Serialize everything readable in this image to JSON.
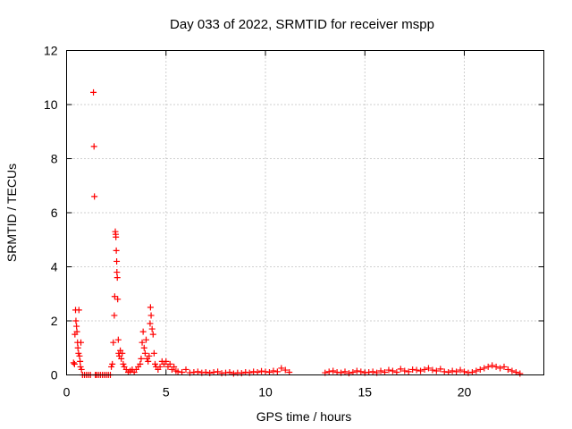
{
  "chart_data": {
    "type": "scatter",
    "title": "Day 033 of 2022, SRMTID for receiver mspp",
    "xlabel": "GPS time / hours",
    "ylabel": "SRMTID / TECUs",
    "xlim": [
      0,
      24
    ],
    "ylim": [
      0,
      12
    ],
    "xticks": [
      0,
      5,
      10,
      15,
      20
    ],
    "yticks": [
      0,
      2,
      4,
      6,
      8,
      10,
      12
    ],
    "xtick_labels": [
      "0",
      "5",
      "10",
      "15",
      "20"
    ],
    "ytick_labels": [
      "0",
      "2",
      "4",
      "6",
      "8",
      "10",
      "12"
    ],
    "grid": true,
    "marker": "+",
    "series": [
      {
        "color": "#ff0000",
        "points": [
          [
            0.35,
            0.45
          ],
          [
            0.4,
            0.4
          ],
          [
            0.42,
            1.5
          ],
          [
            0.45,
            2.4
          ],
          [
            0.47,
            2.0
          ],
          [
            0.5,
            1.8
          ],
          [
            0.52,
            1.6
          ],
          [
            0.55,
            1.2
          ],
          [
            0.57,
            1.0
          ],
          [
            0.6,
            0.8
          ],
          [
            0.62,
            2.4
          ],
          [
            0.65,
            0.7
          ],
          [
            0.68,
            0.5
          ],
          [
            0.7,
            0.3
          ],
          [
            0.72,
            1.2
          ],
          [
            0.75,
            0.2
          ],
          [
            0.8,
            0.0
          ],
          [
            0.9,
            0.0
          ],
          [
            1.0,
            0.0
          ],
          [
            1.1,
            0.0
          ],
          [
            1.2,
            0.0
          ],
          [
            1.35,
            10.45
          ],
          [
            1.38,
            8.45
          ],
          [
            1.4,
            6.6
          ],
          [
            1.45,
            0.0
          ],
          [
            1.5,
            0.0
          ],
          [
            1.6,
            0.0
          ],
          [
            1.7,
            0.0
          ],
          [
            1.8,
            0.0
          ],
          [
            1.9,
            0.0
          ],
          [
            2.0,
            0.0
          ],
          [
            2.1,
            0.0
          ],
          [
            2.2,
            0.0
          ],
          [
            2.25,
            0.3
          ],
          [
            2.3,
            0.4
          ],
          [
            2.35,
            1.2
          ],
          [
            2.4,
            2.2
          ],
          [
            2.42,
            2.9
          ],
          [
            2.45,
            5.3
          ],
          [
            2.47,
            5.2
          ],
          [
            2.48,
            5.1
          ],
          [
            2.5,
            4.6
          ],
          [
            2.52,
            4.2
          ],
          [
            2.53,
            3.8
          ],
          [
            2.55,
            3.6
          ],
          [
            2.57,
            2.8
          ],
          [
            2.6,
            1.3
          ],
          [
            2.62,
            0.8
          ],
          [
            2.65,
            0.7
          ],
          [
            2.7,
            0.9
          ],
          [
            2.75,
            0.6
          ],
          [
            2.8,
            0.8
          ],
          [
            2.85,
            0.4
          ],
          [
            2.9,
            0.3
          ],
          [
            3.0,
            0.2
          ],
          [
            3.1,
            0.1
          ],
          [
            3.2,
            0.15
          ],
          [
            3.3,
            0.2
          ],
          [
            3.4,
            0.1
          ],
          [
            3.5,
            0.2
          ],
          [
            3.6,
            0.3
          ],
          [
            3.7,
            0.4
          ],
          [
            3.75,
            0.6
          ],
          [
            3.8,
            1.2
          ],
          [
            3.85,
            1.6
          ],
          [
            3.9,
            1.0
          ],
          [
            3.95,
            0.8
          ],
          [
            4.0,
            1.3
          ],
          [
            4.05,
            0.6
          ],
          [
            4.1,
            0.5
          ],
          [
            4.15,
            0.7
          ],
          [
            4.2,
            1.9
          ],
          [
            4.22,
            2.5
          ],
          [
            4.25,
            2.2
          ],
          [
            4.3,
            1.7
          ],
          [
            4.35,
            1.5
          ],
          [
            4.4,
            0.8
          ],
          [
            4.45,
            0.4
          ],
          [
            4.5,
            0.3
          ],
          [
            4.6,
            0.2
          ],
          [
            4.7,
            0.3
          ],
          [
            4.8,
            0.5
          ],
          [
            4.9,
            0.4
          ],
          [
            5.0,
            0.5
          ],
          [
            5.1,
            0.3
          ],
          [
            5.2,
            0.4
          ],
          [
            5.3,
            0.2
          ],
          [
            5.4,
            0.3
          ],
          [
            5.5,
            0.15
          ],
          [
            5.6,
            0.12
          ],
          [
            5.8,
            0.1
          ],
          [
            6.0,
            0.2
          ],
          [
            6.2,
            0.08
          ],
          [
            6.4,
            0.1
          ],
          [
            6.6,
            0.12
          ],
          [
            6.8,
            0.08
          ],
          [
            7.0,
            0.1
          ],
          [
            7.2,
            0.07
          ],
          [
            7.4,
            0.1
          ],
          [
            7.6,
            0.12
          ],
          [
            7.8,
            0.06
          ],
          [
            8.0,
            0.08
          ],
          [
            8.2,
            0.1
          ],
          [
            8.4,
            0.05
          ],
          [
            8.6,
            0.08
          ],
          [
            8.8,
            0.06
          ],
          [
            9.0,
            0.1
          ],
          [
            9.2,
            0.08
          ],
          [
            9.4,
            0.12
          ],
          [
            9.6,
            0.1
          ],
          [
            9.8,
            0.14
          ],
          [
            10.0,
            0.12
          ],
          [
            10.2,
            0.1
          ],
          [
            10.4,
            0.15
          ],
          [
            10.6,
            0.12
          ],
          [
            10.8,
            0.25
          ],
          [
            11.0,
            0.18
          ],
          [
            11.2,
            0.1
          ],
          [
            13.0,
            0.08
          ],
          [
            13.2,
            0.12
          ],
          [
            13.4,
            0.15
          ],
          [
            13.6,
            0.1
          ],
          [
            13.8,
            0.08
          ],
          [
            14.0,
            0.12
          ],
          [
            14.2,
            0.06
          ],
          [
            14.4,
            0.1
          ],
          [
            14.6,
            0.15
          ],
          [
            14.8,
            0.12
          ],
          [
            15.0,
            0.08
          ],
          [
            15.2,
            0.1
          ],
          [
            15.4,
            0.12
          ],
          [
            15.6,
            0.08
          ],
          [
            15.8,
            0.15
          ],
          [
            16.0,
            0.1
          ],
          [
            16.2,
            0.18
          ],
          [
            16.4,
            0.15
          ],
          [
            16.6,
            0.1
          ],
          [
            16.8,
            0.22
          ],
          [
            17.0,
            0.15
          ],
          [
            17.2,
            0.12
          ],
          [
            17.4,
            0.2
          ],
          [
            17.6,
            0.18
          ],
          [
            17.8,
            0.15
          ],
          [
            18.0,
            0.2
          ],
          [
            18.2,
            0.25
          ],
          [
            18.4,
            0.18
          ],
          [
            18.6,
            0.15
          ],
          [
            18.8,
            0.22
          ],
          [
            19.0,
            0.12
          ],
          [
            19.2,
            0.1
          ],
          [
            19.4,
            0.15
          ],
          [
            19.6,
            0.12
          ],
          [
            19.8,
            0.18
          ],
          [
            20.0,
            0.12
          ],
          [
            20.2,
            0.08
          ],
          [
            20.4,
            0.1
          ],
          [
            20.6,
            0.15
          ],
          [
            20.8,
            0.2
          ],
          [
            21.0,
            0.25
          ],
          [
            21.2,
            0.3
          ],
          [
            21.4,
            0.35
          ],
          [
            21.6,
            0.3
          ],
          [
            21.8,
            0.25
          ],
          [
            22.0,
            0.3
          ],
          [
            22.2,
            0.2
          ],
          [
            22.4,
            0.15
          ],
          [
            22.6,
            0.1
          ],
          [
            22.8,
            0.05
          ]
        ]
      }
    ]
  }
}
